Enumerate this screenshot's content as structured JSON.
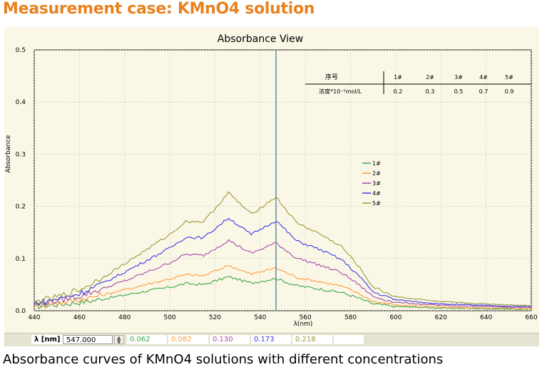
{
  "heading": "Measurement case: KMnO4 solution",
  "caption": "Absorbance curves of KMnO4 solutions with different concentrations",
  "status": {
    "lambda_label": "λ [nm]",
    "lambda_value": "547.000",
    "readings": [
      "0.062",
      "0.082",
      "0.130",
      "0.173",
      "0.218"
    ]
  },
  "table": {
    "header_label": "序号",
    "conc_label": "浓度*10⁻⁵mol/L",
    "ids": [
      "1#",
      "2#",
      "3#",
      "4#",
      "5#"
    ],
    "concentrations": [
      "0.2",
      "0.3",
      "0.5",
      "0.7",
      "0.9"
    ]
  },
  "colors": {
    "heading": "#e8821f",
    "cursor": "#5b8fa0",
    "series": [
      "#3aa64a",
      "#ff9a3c",
      "#a24aa8",
      "#3a3ae6",
      "#9a9a3a"
    ]
  },
  "chart_data": {
    "type": "line",
    "title": "Absorbance View",
    "xlabel": "λ(nm)",
    "ylabel": "Absorbance",
    "xlim": [
      440,
      660
    ],
    "ylim": [
      0,
      0.5
    ],
    "xticks": [
      440,
      460,
      480,
      500,
      520,
      540,
      560,
      580,
      600,
      620,
      640,
      660
    ],
    "yticks": [
      0.0,
      0.1,
      0.2,
      0.3,
      0.4,
      0.5
    ],
    "ytick_labels": [
      "0.0",
      "0.1",
      "0.2",
      "0.3",
      "0.4",
      "0.5"
    ],
    "grid": true,
    "legend": "center-right",
    "cursor_x": 547,
    "x": [
      440,
      450,
      460,
      470,
      480,
      490,
      500,
      507,
      515,
      526,
      536,
      547,
      556,
      566,
      576,
      583,
      590,
      600,
      620,
      640,
      660
    ],
    "series": [
      {
        "name": "1#",
        "values": [
          0.008,
          0.012,
          0.016,
          0.022,
          0.03,
          0.038,
          0.045,
          0.052,
          0.05,
          0.065,
          0.053,
          0.062,
          0.048,
          0.042,
          0.035,
          0.025,
          0.013,
          0.008,
          0.005,
          0.004,
          0.003
        ]
      },
      {
        "name": "2#",
        "values": [
          0.01,
          0.015,
          0.021,
          0.03,
          0.04,
          0.051,
          0.061,
          0.069,
          0.067,
          0.087,
          0.07,
          0.082,
          0.064,
          0.056,
          0.047,
          0.034,
          0.018,
          0.011,
          0.007,
          0.005,
          0.004
        ]
      },
      {
        "name": "3#",
        "values": [
          0.012,
          0.019,
          0.028,
          0.042,
          0.057,
          0.074,
          0.092,
          0.108,
          0.106,
          0.135,
          0.11,
          0.13,
          0.101,
          0.088,
          0.073,
          0.052,
          0.027,
          0.016,
          0.01,
          0.008,
          0.006
        ]
      },
      {
        "name": "4#",
        "values": [
          0.014,
          0.022,
          0.033,
          0.052,
          0.074,
          0.097,
          0.12,
          0.141,
          0.14,
          0.178,
          0.146,
          0.173,
          0.134,
          0.118,
          0.098,
          0.07,
          0.036,
          0.021,
          0.013,
          0.01,
          0.008
        ]
      },
      {
        "name": "5#",
        "values": [
          0.016,
          0.026,
          0.04,
          0.063,
          0.09,
          0.118,
          0.146,
          0.171,
          0.171,
          0.226,
          0.185,
          0.218,
          0.169,
          0.148,
          0.123,
          0.088,
          0.045,
          0.027,
          0.017,
          0.013,
          0.01
        ]
      }
    ]
  }
}
